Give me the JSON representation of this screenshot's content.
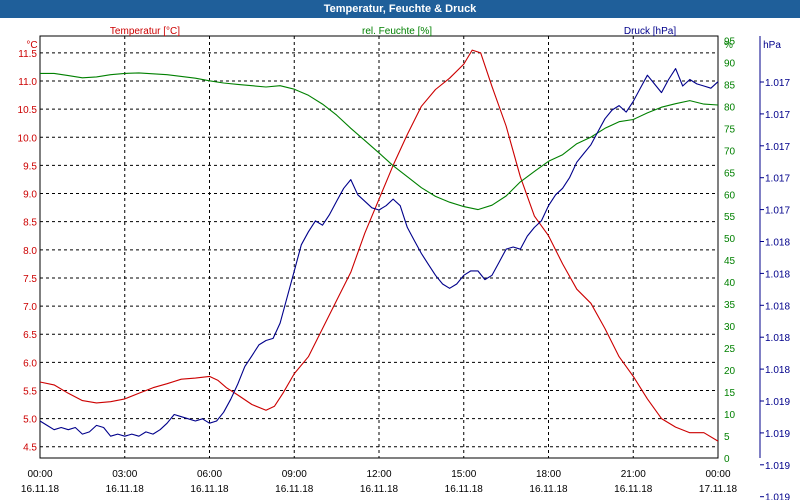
{
  "window_title": "Temperatur, Feuchte & Druck",
  "colors": {
    "temperature": "#cc0000",
    "humidity": "#008000",
    "pressure": "#00008b",
    "titlebar": "#1f5f9a",
    "grid": "#000000"
  },
  "chart_data": {
    "type": "line",
    "title": "Temperatur, Feuchte & Druck",
    "grid": true,
    "x_ticks": [
      {
        "time": "00:00",
        "date": "16.11.18"
      },
      {
        "time": "03:00",
        "date": "16.11.18"
      },
      {
        "time": "06:00",
        "date": "16.11.18"
      },
      {
        "time": "09:00",
        "date": "16.11.18"
      },
      {
        "time": "12:00",
        "date": "16.11.18"
      },
      {
        "time": "15:00",
        "date": "16.11.18"
      },
      {
        "time": "18:00",
        "date": "16.11.18"
      },
      {
        "time": "21:00",
        "date": "16.11.18"
      },
      {
        "time": "00:00",
        "date": "17.11.18"
      }
    ],
    "x_hours_range": [
      0,
      24
    ],
    "axes": {
      "temperature": {
        "title": "Temperatur [°C]",
        "unit": "°C",
        "range": [
          4.3,
          11.8
        ],
        "ticks": [
          "4.5",
          "5.0",
          "5.5",
          "6.0",
          "6.5",
          "7.0",
          "7.5",
          "8.0",
          "8.5",
          "9.0",
          "9.5",
          "10.0",
          "10.5",
          "11.0",
          "11.5"
        ]
      },
      "humidity": {
        "title": "rel. Feuchte [%]",
        "unit": "%",
        "range": [
          0,
          96
        ],
        "ticks": [
          "0",
          "5",
          "10",
          "15",
          "20",
          "25",
          "30",
          "35",
          "40",
          "45",
          "50",
          "55",
          "60",
          "65",
          "70",
          "75",
          "80",
          "85",
          "90",
          "95"
        ]
      },
      "pressure": {
        "title": "Druck [hPa]",
        "unit": "hPa",
        "ticks": [
          "1.017",
          "1.017",
          "1.017",
          "1.017",
          "1.017",
          "1.018",
          "1.018",
          "1.018",
          "1.018",
          "1.018",
          "1.019",
          "1.019",
          "1.019",
          "1.019"
        ]
      }
    },
    "series": [
      {
        "name": "Temperatur [°C]",
        "axis": "temperature",
        "color": "#cc0000",
        "x": [
          0,
          0.5,
          1,
          1.5,
          2,
          2.5,
          3,
          3.5,
          4,
          4.5,
          5,
          5.5,
          6,
          6.3,
          6.6,
          7,
          7.5,
          8,
          8.3,
          8.6,
          9,
          9.5,
          10,
          10.5,
          11,
          11.5,
          12,
          12.5,
          13,
          13.5,
          14,
          14.5,
          15,
          15.3,
          15.6,
          16,
          16.5,
          17,
          17.5,
          18,
          18.5,
          19,
          19.5,
          20,
          20.5,
          21,
          21.5,
          22,
          22.5,
          23,
          23.5,
          24
        ],
        "values": [
          5.65,
          5.6,
          5.45,
          5.32,
          5.28,
          5.3,
          5.35,
          5.45,
          5.55,
          5.62,
          5.7,
          5.72,
          5.75,
          5.68,
          5.55,
          5.42,
          5.25,
          5.15,
          5.22,
          5.45,
          5.8,
          6.1,
          6.6,
          7.1,
          7.6,
          8.3,
          8.9,
          9.5,
          10.05,
          10.55,
          10.85,
          11.05,
          11.3,
          11.55,
          11.5,
          10.9,
          10.2,
          9.3,
          8.6,
          8.25,
          7.75,
          7.3,
          7.05,
          6.6,
          6.1,
          5.75,
          5.35,
          5.0,
          4.85,
          4.75,
          4.75,
          4.6
        ]
      },
      {
        "name": "rel. Feuchte [%]",
        "axis": "humidity",
        "color": "#008000",
        "x": [
          0,
          0.5,
          1,
          1.5,
          2,
          2.5,
          3,
          3.5,
          4,
          4.5,
          5,
          5.5,
          6,
          6.5,
          7,
          7.5,
          8,
          8.5,
          9,
          9.5,
          10,
          10.5,
          11,
          11.5,
          12,
          12.5,
          13,
          13.5,
          14,
          14.5,
          15,
          15.5,
          16,
          16.5,
          17,
          17.5,
          18,
          18.5,
          19,
          19.5,
          20,
          20.5,
          21,
          21.5,
          22,
          22.5,
          23,
          23.5,
          24
        ],
        "values": [
          87.5,
          87.5,
          87,
          86.5,
          86.7,
          87.2,
          87.5,
          87.6,
          87.4,
          87.2,
          86.8,
          86.4,
          85.8,
          85.3,
          85.0,
          84.7,
          84.4,
          84.7,
          83.9,
          82.5,
          80.5,
          78,
          75,
          72.2,
          69.4,
          66.5,
          64,
          61.5,
          59.5,
          58.2,
          57.2,
          56.5,
          57.5,
          59.6,
          62.8,
          65.2,
          67.5,
          69,
          71.5,
          73,
          75,
          76.5,
          77,
          78.5,
          79.8,
          80.6,
          81.3,
          80.5,
          80.3
        ]
      },
      {
        "name": "Druck [hPa]",
        "axis": "pressure",
        "color": "#00008b",
        "x": [
          0,
          0.25,
          0.5,
          0.75,
          1,
          1.25,
          1.5,
          1.75,
          2,
          2.25,
          2.5,
          2.75,
          3,
          3.25,
          3.5,
          3.75,
          4,
          4.25,
          4.5,
          4.75,
          5,
          5.25,
          5.5,
          5.75,
          6,
          6.25,
          6.5,
          6.75,
          7,
          7.25,
          7.5,
          7.75,
          8,
          8.25,
          8.5,
          8.75,
          9,
          9.25,
          9.5,
          9.75,
          10,
          10.25,
          10.5,
          10.75,
          11,
          11.25,
          11.5,
          11.75,
          12,
          12.25,
          12.5,
          12.75,
          13,
          13.25,
          13.5,
          13.75,
          14,
          14.25,
          14.5,
          14.75,
          15,
          15.25,
          15.5,
          15.75,
          16,
          16.25,
          16.5,
          16.75,
          17,
          17.25,
          17.5,
          17.75,
          18,
          18.25,
          18.5,
          18.75,
          19,
          19.25,
          19.5,
          19.75,
          20,
          20.25,
          20.5,
          20.75,
          21,
          21.25,
          21.5,
          21.75,
          22,
          22.25,
          22.5,
          22.75,
          23,
          23.25,
          23.5,
          23.75,
          24
        ],
        "values": [
          1016.93,
          1016.91,
          1016.89,
          1016.9,
          1016.89,
          1016.9,
          1016.87,
          1016.88,
          1016.91,
          1016.9,
          1016.86,
          1016.87,
          1016.86,
          1016.87,
          1016.86,
          1016.88,
          1016.87,
          1016.89,
          1016.92,
          1016.96,
          1016.95,
          1016.94,
          1016.93,
          1016.94,
          1016.92,
          1016.93,
          1016.97,
          1017.03,
          1017.1,
          1017.18,
          1017.23,
          1017.28,
          1017.3,
          1017.31,
          1017.38,
          1017.5,
          1017.62,
          1017.74,
          1017.8,
          1017.85,
          1017.83,
          1017.88,
          1017.94,
          1018.0,
          1018.04,
          1017.97,
          1017.94,
          1017.91,
          1017.9,
          1017.92,
          1017.95,
          1017.92,
          1017.82,
          1017.76,
          1017.7,
          1017.65,
          1017.6,
          1017.56,
          1017.54,
          1017.56,
          1017.6,
          1017.62,
          1017.62,
          1017.58,
          1017.6,
          1017.66,
          1017.72,
          1017.73,
          1017.72,
          1017.78,
          1017.82,
          1017.85,
          1017.92,
          1017.97,
          1018.0,
          1018.05,
          1018.12,
          1018.16,
          1018.2,
          1018.26,
          1018.32,
          1018.36,
          1018.38,
          1018.35,
          1018.4,
          1018.46,
          1018.52,
          1018.48,
          1018.44,
          1018.5,
          1018.55,
          1018.47,
          1018.5,
          1018.48,
          1018.47,
          1018.46,
          1018.49
        ]
      }
    ],
    "pressure_range": [
      1016.76,
      1018.7
    ]
  }
}
